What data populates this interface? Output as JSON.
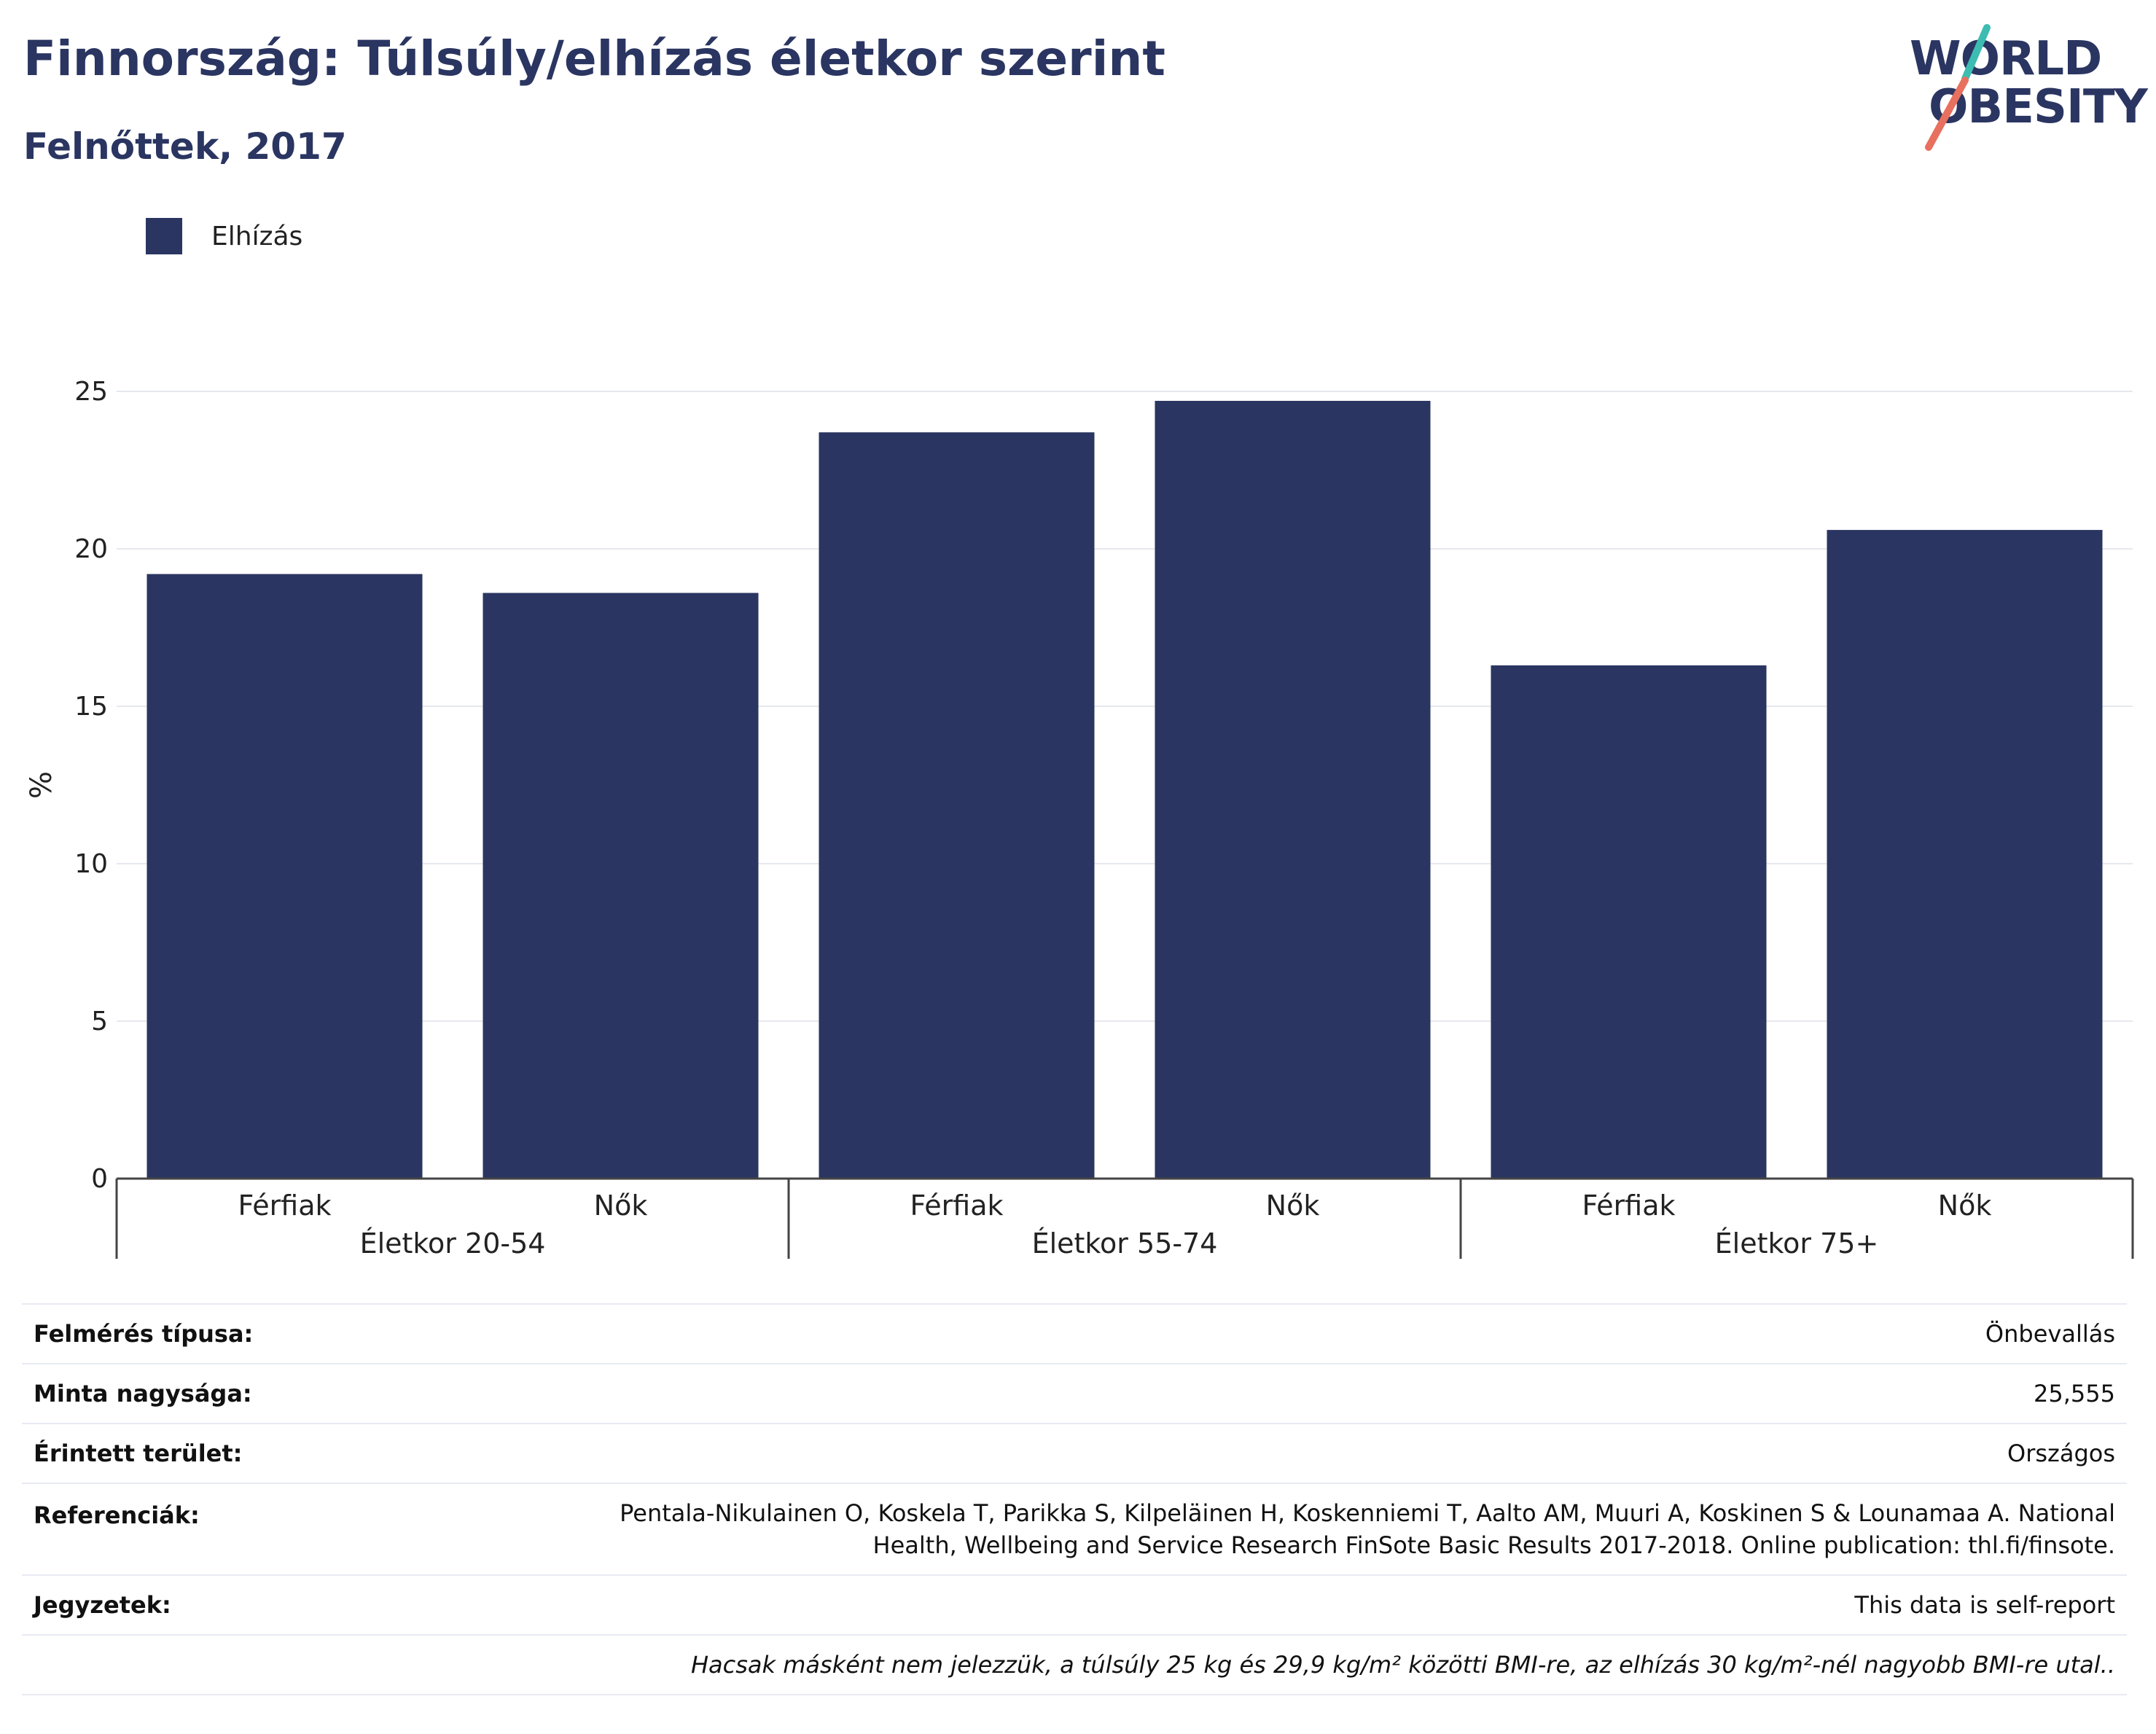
{
  "header": {
    "title": "Finnország: Túlsúly/elhízás életkor szerint",
    "subtitle": "Felnőttek, 2017"
  },
  "logo": {
    "line1": "WORLD",
    "line2": "OBESITY"
  },
  "colors": {
    "bar": "#2a3561",
    "logo_teal": "#3dbcb2",
    "logo_coral": "#e8705e",
    "text_navy": "#2a3561"
  },
  "chart_data": {
    "type": "bar",
    "title": "Finnország: Túlsúly/elhízás életkor szerint",
    "subtitle": "Felnőttek, 2017",
    "ylabel": "%",
    "ylim": [
      0,
      25
    ],
    "yticks": [
      0,
      5,
      10,
      15,
      20,
      25
    ],
    "grid": true,
    "legend_position": "top-left",
    "groups": [
      "Életkor 20-54",
      "Életkor 55-74",
      "Életkor 75+"
    ],
    "categories": [
      "Férfiak",
      "Nők",
      "Férfiak",
      "Nők",
      "Férfiak",
      "Nők"
    ],
    "series": [
      {
        "name": "Elhízás",
        "values": [
          19.2,
          18.6,
          23.7,
          24.7,
          16.3,
          20.6
        ]
      }
    ]
  },
  "info": {
    "rows": [
      {
        "label": "Felmérés típusa:",
        "value": "Önbevallás"
      },
      {
        "label": "Minta nagysága:",
        "value": "25,555"
      },
      {
        "label": "Érintett terület:",
        "value": "Országos"
      },
      {
        "label": "Referenciák:",
        "value_line1": "Pentala-Nikulainen O, Koskela T, Parikka S, Kilpeläinen H, Koskenniemi T, Aalto AM, Muuri A, Koskinen S & Lounamaa A. National",
        "value_line2": "Health, Wellbeing and Service Research FinSote Basic Results 2017-2018. Online publication: thl.fi/finsote."
      },
      {
        "label": "Jegyzetek:",
        "value": "This data is self-report"
      }
    ],
    "footnote": "Hacsak másként nem jelezzük, a túlsúly 25 kg és 29,9 kg/m² közötti BMI-re, az elhízás 30 kg/m²-nél nagyobb BMI-re utal.."
  }
}
